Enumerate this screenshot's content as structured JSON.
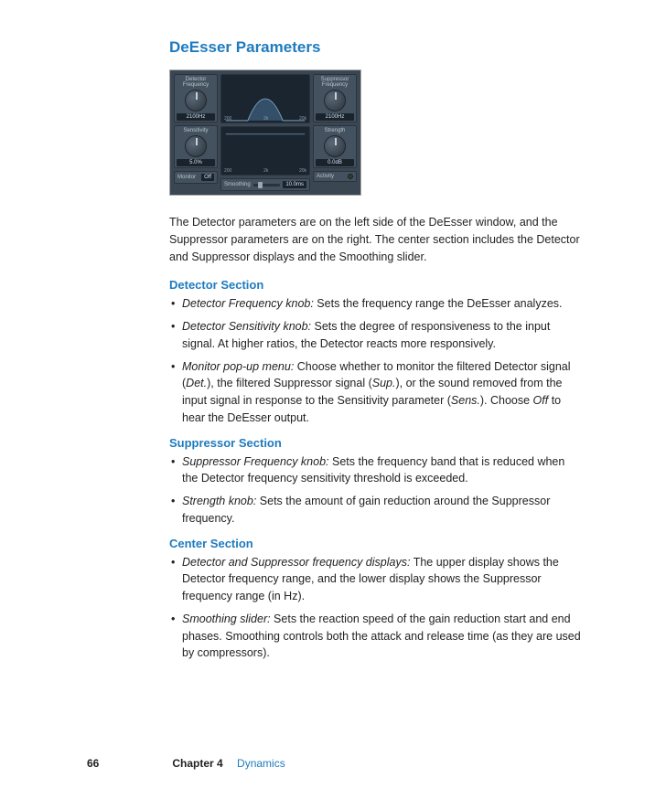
{
  "title": "DeEsser Parameters",
  "intro": "The Detector parameters are on the left side of the DeEsser window, and the Suppressor parameters are on the right. The center section includes the Detector and Suppressor displays and the Smoothing slider.",
  "plugin": {
    "detector": {
      "section_label": "Detector",
      "freq_label": "Frequency",
      "freq_value": "2100Hz",
      "sens_label": "Sensitivity",
      "sens_value": "5.0%",
      "monitor_label": "Monitor",
      "monitor_value": "Off"
    },
    "center": {
      "axis_left": "200",
      "axis_mid": "2k",
      "axis_right": "20k",
      "smoothing_label": "Smoothing",
      "smoothing_value": "10.0ms",
      "curve_color": "#5d8fb8",
      "bg_color": "#1a2530"
    },
    "suppressor": {
      "section_label": "Suppressor",
      "freq_label": "Frequency",
      "freq_value": "2100Hz",
      "strength_label": "Strength",
      "strength_value": "0.0dB",
      "activity_label": "Activity"
    }
  },
  "sections": [
    {
      "heading": "Detector Section",
      "items": [
        {
          "term": "Detector Frequency knob:",
          "text": " Sets the frequency range the DeEsser analyzes."
        },
        {
          "term": "Detector Sensitivity knob:",
          "text": " Sets the degree of responsiveness to the input signal. At higher ratios, the Detector reacts more responsively."
        },
        {
          "term": "Monitor pop-up menu:",
          "text": " Choose whether to monitor the filtered Detector signal (Det.), the filtered Suppressor signal (Sup.), or the sound removed from the input signal in response to the Sensitivity parameter (Sens.). Choose Off to hear the DeEsser output.",
          "italics": [
            "Det.",
            "Sup.",
            "Sens.",
            "Off"
          ]
        }
      ]
    },
    {
      "heading": "Suppressor Section",
      "items": [
        {
          "term": "Suppressor Frequency knob:",
          "text": " Sets the frequency band that is reduced when the Detector frequency sensitivity threshold is exceeded."
        },
        {
          "term": "Strength knob:",
          "text": " Sets the amount of gain reduction around the Suppressor frequency."
        }
      ]
    },
    {
      "heading": "Center Section",
      "items": [
        {
          "term": "Detector and Suppressor frequency displays:",
          "text": " The upper display shows the Detector frequency range, and the lower display shows the Suppressor frequency range (in Hz)."
        },
        {
          "term": "Smoothing slider:",
          "text": " Sets the reaction speed of the gain reduction start and end phases. Smoothing controls both the attack and release time (as they are used by compressors)."
        }
      ]
    }
  ],
  "footer": {
    "page": "66",
    "chapter_label": "Chapter 4",
    "chapter_name": "Dynamics"
  },
  "colors": {
    "heading_blue": "#1e7bbf",
    "text": "#222222",
    "panel_bg": "#3a4753"
  }
}
